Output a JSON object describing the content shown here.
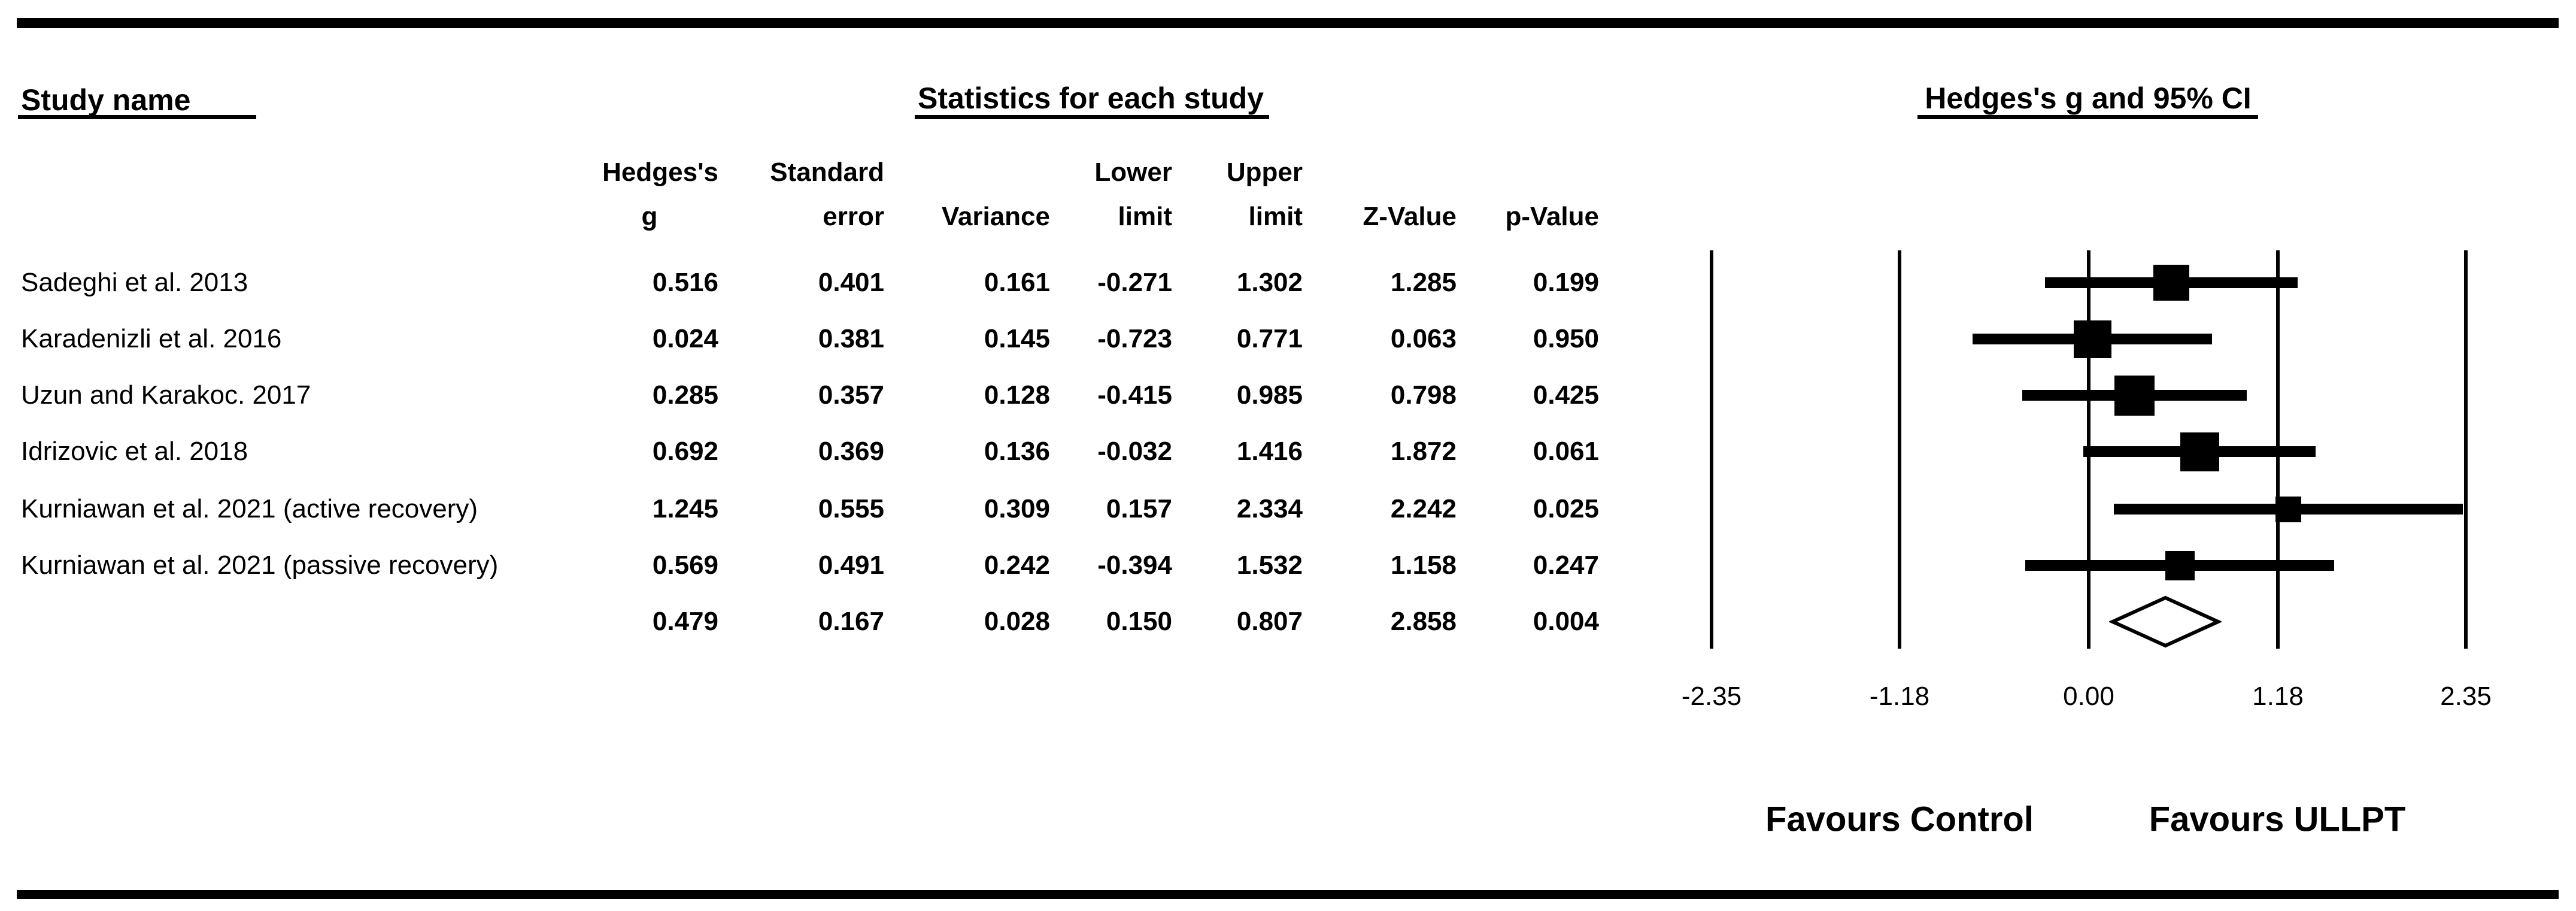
{
  "figure": {
    "table_title": "Study name",
    "stats_title": "Statistics for each study",
    "plot_title": "Hedges's g and 95% CI",
    "column_headers": [
      {
        "line1": "Hedges's",
        "line2": "g"
      },
      {
        "line1": "Standard",
        "line2": "error"
      },
      {
        "line1": "",
        "line2": "Variance"
      },
      {
        "line1": "Lower",
        "line2": "limit"
      },
      {
        "line1": "Upper",
        "line2": "limit"
      },
      {
        "line1": "",
        "line2": "Z-Value"
      },
      {
        "line1": "",
        "line2": "p-Value"
      }
    ],
    "footer_left": "Favours Control",
    "footer_right": "Favours ULLPT",
    "colors": {
      "ink": "#000000",
      "background": "#ffffff"
    }
  },
  "chart_data": {
    "type": "forest",
    "title": "Hedges's g and 95% CI",
    "xlabel_ticks": [
      "-2.35",
      "-1.18",
      "0.00",
      "1.18",
      "2.35"
    ],
    "x_ticks": [
      -2.35,
      -1.18,
      0.0,
      1.18,
      2.35
    ],
    "xlim": [
      -2.35,
      2.35
    ],
    "effect_measure": "Hedges's g",
    "studies": [
      {
        "name": "Sadeghi et al. 2013",
        "g": 0.516,
        "se": 0.401,
        "variance": 0.161,
        "lower": -0.271,
        "upper": 1.302,
        "z": 1.285,
        "p": 0.199
      },
      {
        "name": "Karadenizli et al. 2016",
        "g": 0.024,
        "se": 0.381,
        "variance": 0.145,
        "lower": -0.723,
        "upper": 0.771,
        "z": 0.063,
        "p": 0.95
      },
      {
        "name": "Uzun and Karakoc. 2017",
        "g": 0.285,
        "se": 0.357,
        "variance": 0.128,
        "lower": -0.415,
        "upper": 0.985,
        "z": 0.798,
        "p": 0.425
      },
      {
        "name": "Idrizovic et al. 2018",
        "g": 0.692,
        "se": 0.369,
        "variance": 0.136,
        "lower": -0.032,
        "upper": 1.416,
        "z": 1.872,
        "p": 0.061
      },
      {
        "name": "Kurniawan et al. 2021 (active recovery)",
        "g": 1.245,
        "se": 0.555,
        "variance": 0.309,
        "lower": 0.157,
        "upper": 2.334,
        "z": 2.242,
        "p": 0.025
      },
      {
        "name": "Kurniawan et al. 2021 (passive recovery)",
        "g": 0.569,
        "se": 0.491,
        "variance": 0.242,
        "lower": -0.394,
        "upper": 1.532,
        "z": 1.158,
        "p": 0.247
      }
    ],
    "overall": {
      "name": "",
      "g": 0.479,
      "se": 0.167,
      "variance": 0.028,
      "lower": 0.15,
      "upper": 0.807,
      "z": 2.858,
      "p": 0.004
    },
    "legend_footer": [
      "Favours Control",
      "Favours ULLPT"
    ]
  }
}
